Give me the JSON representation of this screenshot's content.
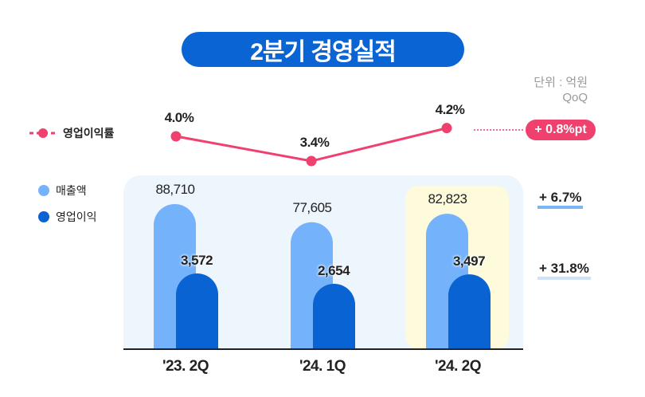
{
  "title": "2분기 경영실적",
  "unit": "단위 : 억원",
  "comparison": "QoQ",
  "chart_data": {
    "type": "bar",
    "title": "2분기 경영실적",
    "categories": [
      "'23. 2Q",
      "'24. 1Q",
      "'24. 2Q"
    ],
    "series": [
      {
        "name": "매출액",
        "values": [
          88710,
          77605,
          82823
        ],
        "labels": [
          "88,710",
          "77,605",
          "82,823"
        ],
        "color": "#74b3fb"
      },
      {
        "name": "영업이익",
        "values": [
          3572,
          2654,
          3497
        ],
        "labels": [
          "3,572",
          "2,654",
          "3,497"
        ],
        "color": "#0a63d2"
      }
    ],
    "line_series": {
      "name": "영업이익률",
      "values": [
        4.0,
        3.4,
        4.2
      ],
      "labels": [
        "4.0%",
        "3.4%",
        "4.2%"
      ],
      "color": "#f0406e"
    },
    "highlight_category": "'24. 2Q",
    "changes": {
      "margin": "+ 0.8%pt",
      "revenue": "+ 6.7%",
      "operating_profit": "+ 31.8%"
    }
  }
}
